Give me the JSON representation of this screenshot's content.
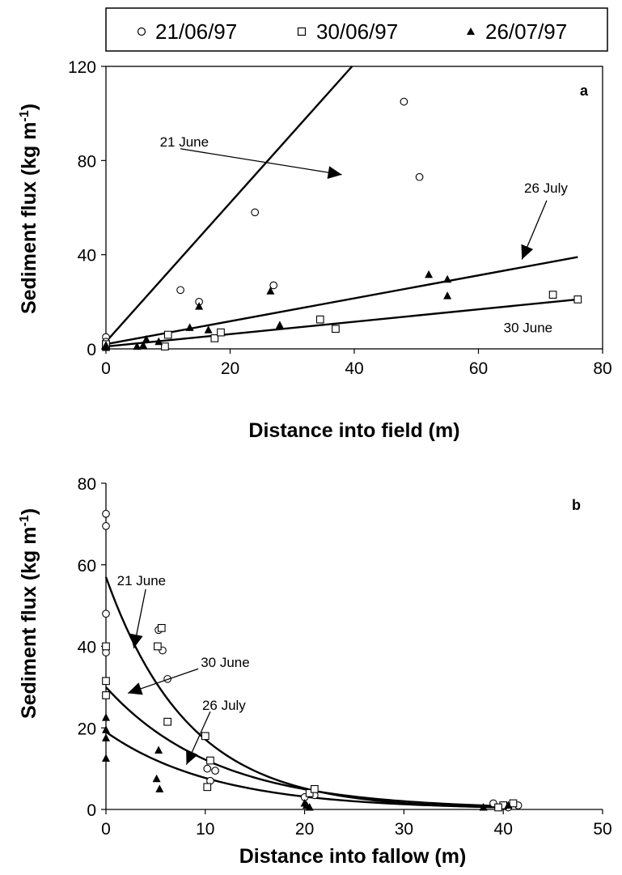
{
  "legend": {
    "entries": [
      {
        "label": "21/06/97",
        "marker": "circle-open"
      },
      {
        "label": "30/06/97",
        "marker": "square-open"
      },
      {
        "label": "26/07/97",
        "marker": "triangle-filled"
      }
    ]
  },
  "chart_data": [
    {
      "type": "scatter",
      "panel_label": "a",
      "xlabel": "Distance into field (m)",
      "ylabel": "Sediment flux (kg m",
      "ylabel_sup": "-1",
      "ylabel_close": ")",
      "xlim": [
        0,
        80
      ],
      "ylim": [
        0,
        120
      ],
      "xticks": [
        0,
        20,
        40,
        60,
        80
      ],
      "yticks": [
        0,
        40,
        80,
        120
      ],
      "grid": false,
      "series": [
        {
          "name": "21/06/97",
          "marker": "circle-open",
          "points": [
            [
              0,
              5
            ],
            [
              0,
              3
            ],
            [
              12,
              25
            ],
            [
              15,
              20
            ],
            [
              24,
              58
            ],
            [
              27,
              27
            ],
            [
              48,
              105
            ],
            [
              50.5,
              73
            ]
          ],
          "fit": {
            "kind": "linear",
            "x": [
              0,
              41
            ],
            "y": [
              3,
              124
            ]
          }
        },
        {
          "name": "30/06/97",
          "marker": "square-open",
          "points": [
            [
              0,
              1
            ],
            [
              0,
              2
            ],
            [
              9.5,
              1
            ],
            [
              10,
              6
            ],
            [
              17.5,
              4.5
            ],
            [
              18.5,
              7
            ],
            [
              34.5,
              12.5
            ],
            [
              37,
              8.5
            ],
            [
              72,
              23
            ],
            [
              76,
              21
            ]
          ],
          "fit": {
            "kind": "linear",
            "x": [
              0,
              76
            ],
            "y": [
              1,
              21
            ]
          }
        },
        {
          "name": "26/07/97",
          "marker": "triangle-filled",
          "points": [
            [
              0,
              0.5
            ],
            [
              0,
              1.5
            ],
            [
              5,
              1
            ],
            [
              6,
              1.5
            ],
            [
              6.5,
              4
            ],
            [
              8.5,
              3
            ],
            [
              13.5,
              9
            ],
            [
              15,
              18
            ],
            [
              16.5,
              8
            ],
            [
              26.5,
              24.5
            ],
            [
              28,
              10
            ],
            [
              52,
              31.5
            ],
            [
              55,
              29.5
            ],
            [
              55,
              22.5
            ]
          ],
          "fit": {
            "kind": "linear",
            "x": [
              0,
              76
            ],
            "y": [
              2,
              39
            ]
          }
        }
      ],
      "annotations": [
        {
          "text": "21 June",
          "from": [
            12,
            85
          ],
          "to": [
            38,
            74
          ]
        },
        {
          "text": "26 July",
          "from": [
            71,
            63
          ],
          "to": [
            67,
            38
          ]
        },
        {
          "text": "30 June",
          "from": null,
          "to": null,
          "at": [
            68,
            7
          ]
        }
      ]
    },
    {
      "type": "scatter",
      "panel_label": "b",
      "xlabel": "Distance into fallow (m)",
      "ylabel": "Sediment flux (kg m",
      "ylabel_sup": "-1",
      "ylabel_close": ")",
      "xlim": [
        0,
        50
      ],
      "ylim": [
        0,
        80
      ],
      "xticks": [
        0,
        10,
        20,
        30,
        40,
        50
      ],
      "yticks": [
        0,
        20,
        40,
        60,
        80
      ],
      "grid": false,
      "series": [
        {
          "name": "21/06/97",
          "marker": "circle-open",
          "points": [
            [
              0,
              72.5
            ],
            [
              0,
              69.5
            ],
            [
              0,
              48
            ],
            [
              0,
              38.5
            ],
            [
              5.3,
              44
            ],
            [
              5.7,
              39
            ],
            [
              6.2,
              32
            ],
            [
              10.2,
              10
            ],
            [
              10.5,
              7
            ],
            [
              11,
              9.5
            ],
            [
              20,
              3
            ],
            [
              21,
              3.5
            ],
            [
              39,
              1.5
            ],
            [
              40,
              1
            ],
            [
              41.5,
              1
            ],
            [
              40.5,
              0.5
            ]
          ],
          "fit": {
            "kind": "exponential",
            "a": 57,
            "b": 0.12,
            "xmax": 40
          }
        },
        {
          "name": "30/06/97",
          "marker": "square-open",
          "points": [
            [
              0,
              40
            ],
            [
              0,
              31.5
            ],
            [
              0,
              28
            ],
            [
              5.2,
              40
            ],
            [
              5.6,
              44.5
            ],
            [
              6.2,
              21.5
            ],
            [
              10,
              18
            ],
            [
              10.5,
              12
            ],
            [
              10.2,
              5.5
            ],
            [
              20.5,
              4
            ],
            [
              21,
              5
            ],
            [
              40,
              1
            ],
            [
              41,
              1.5
            ],
            [
              39.5,
              0.5
            ]
          ],
          "fit": {
            "kind": "exponential",
            "a": 30,
            "b": 0.09,
            "xmax": 40
          }
        },
        {
          "name": "26/07/97",
          "marker": "triangle-filled",
          "points": [
            [
              0,
              22.5
            ],
            [
              0,
              19.5
            ],
            [
              0,
              17.5
            ],
            [
              0,
              12.5
            ],
            [
              5.3,
              14.5
            ],
            [
              5.1,
              7.5
            ],
            [
              5.4,
              5
            ],
            [
              20,
              1.5
            ],
            [
              20.5,
              0.5
            ],
            [
              20.2,
              1
            ],
            [
              38,
              0.5
            ],
            [
              40.5,
              1
            ]
          ],
          "fit": {
            "kind": "exponential",
            "a": 19,
            "b": 0.09,
            "xmax": 40
          }
        }
      ],
      "annotations": [
        {
          "text": "21 June",
          "from": [
            4,
            54
          ],
          "to": [
            2.8,
            39.5
          ]
        },
        {
          "text": "30 June",
          "from": [
            9.3,
            34.5
          ],
          "to": [
            2.2,
            28.5
          ]
        },
        {
          "text": "26 July",
          "from": [
            10.5,
            24
          ],
          "to": [
            8.1,
            11
          ]
        }
      ]
    }
  ]
}
